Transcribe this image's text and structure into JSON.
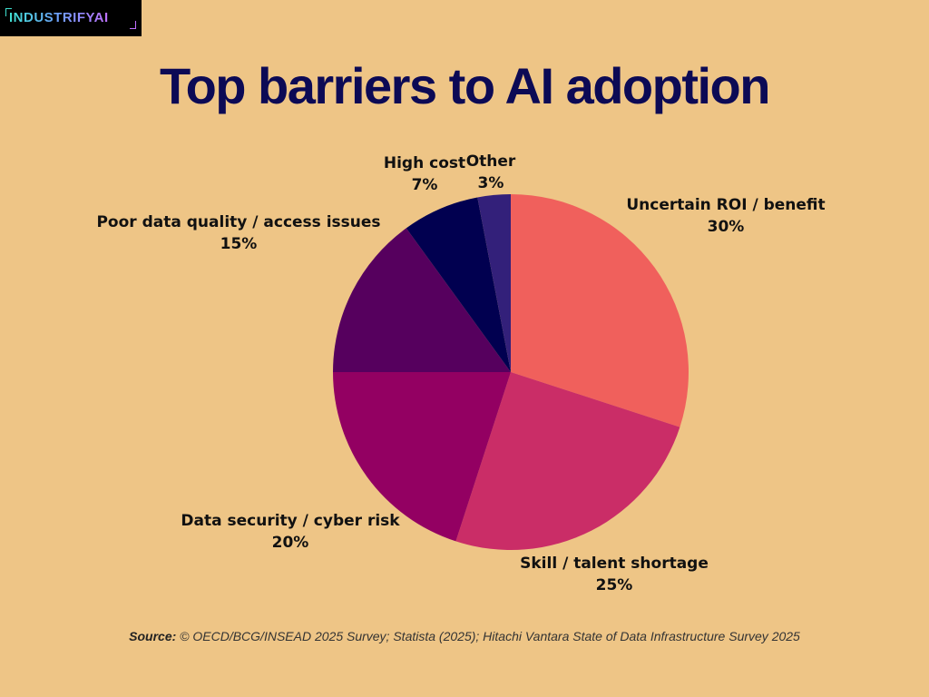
{
  "logo": {
    "text": "INDUSTRIFYAI"
  },
  "source": {
    "label": "Source:",
    "text": " © OECD/BCG/INSEAD 2025 Survey; Statista (2025); Hitachi Vantara State of Data Infrastructure Survey 2025"
  },
  "chart_data": {
    "type": "pie",
    "title": "Top barriers to AI adoption",
    "start_angle": "12 o'clock",
    "direction": "clockwise",
    "slices": [
      {
        "label": "Uncertain ROI / benefit",
        "value": 30,
        "value_label": "30%",
        "color": "#F0605C"
      },
      {
        "label": "Skill / talent shortage",
        "value": 25,
        "value_label": "25%",
        "color": "#CA2D67"
      },
      {
        "label": "Data security / cyber risk",
        "value": 20,
        "value_label": "20%",
        "color": "#930062"
      },
      {
        "label": "Poor data quality / access issues",
        "value": 15,
        "value_label": "15%",
        "color": "#56005E"
      },
      {
        "label": "High cost",
        "value": 7,
        "value_label": "7%",
        "color": "#010050"
      },
      {
        "label": "Other",
        "value": 3,
        "value_label": "3%",
        "color": "#33207A"
      }
    ]
  }
}
